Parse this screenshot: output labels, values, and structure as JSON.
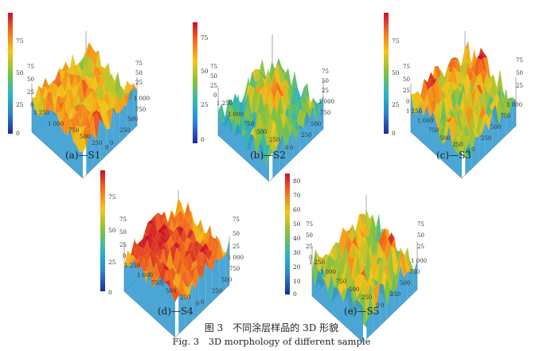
{
  "figure": {
    "caption_cn": "图 3　不同涂层样品的 3D 形貌",
    "caption_en": "Fig. 3　3D morphology of different sample"
  },
  "panels": [
    {
      "label": "(a)—S1",
      "colorbar": [
        "75",
        "50",
        "25",
        "0"
      ],
      "z_axis": [
        "75",
        "50",
        "25",
        "0"
      ],
      "left_axis": [
        "1 250",
        "1 000",
        "750",
        "500",
        "250",
        "0"
      ],
      "right_axis": [
        "0",
        "250",
        "500",
        "750",
        "1 000"
      ],
      "right_z": [
        "75",
        "50",
        "25"
      ]
    },
    {
      "label": "(b)—S2",
      "colorbar": [
        "75",
        "50",
        "25",
        "0"
      ],
      "z_axis": [
        "75",
        "50",
        "25",
        "0"
      ],
      "left_axis": [
        "1 250",
        "1 000",
        "750",
        "500",
        "250",
        "0"
      ],
      "right_axis": [
        "0",
        "250",
        "500",
        "750",
        "1 000"
      ],
      "right_z": [
        "75",
        "50",
        "25"
      ]
    },
    {
      "label": "(c)—S3",
      "colorbar": [
        "75",
        "50",
        "25",
        "0"
      ],
      "z_axis": [
        "75",
        "50",
        "25",
        "0"
      ],
      "left_axis": [
        "1 250",
        "1 000",
        "750",
        "500",
        "250",
        "0"
      ],
      "right_axis": [
        "0",
        "250",
        "500",
        "750",
        "1 000"
      ],
      "right_z": [
        "75",
        "50",
        "25"
      ]
    },
    {
      "label": "(d)—S4",
      "colorbar": [
        "75",
        "50",
        "25",
        "0"
      ],
      "z_axis": [
        "75",
        "50",
        "25",
        "0"
      ],
      "left_axis": [
        "1 250",
        "1 000",
        "750",
        "500",
        "250",
        "0"
      ],
      "right_axis": [
        "0",
        "250",
        "500",
        "750",
        "1 000"
      ],
      "right_z": [
        "75",
        "50",
        "25"
      ]
    },
    {
      "label": "(e)—S5",
      "colorbar": [
        "80",
        "70",
        "60",
        "50",
        "40",
        "30",
        "20",
        "10",
        "0"
      ],
      "z_axis": [
        "75",
        "50",
        "25",
        "0"
      ],
      "left_axis": [
        "1 250",
        "1 000",
        "750",
        "500",
        "250",
        "0"
      ],
      "right_axis": [
        "0",
        "250",
        "500",
        "750",
        "1 000"
      ],
      "right_z": [
        "75",
        "50",
        "25"
      ]
    }
  ]
}
